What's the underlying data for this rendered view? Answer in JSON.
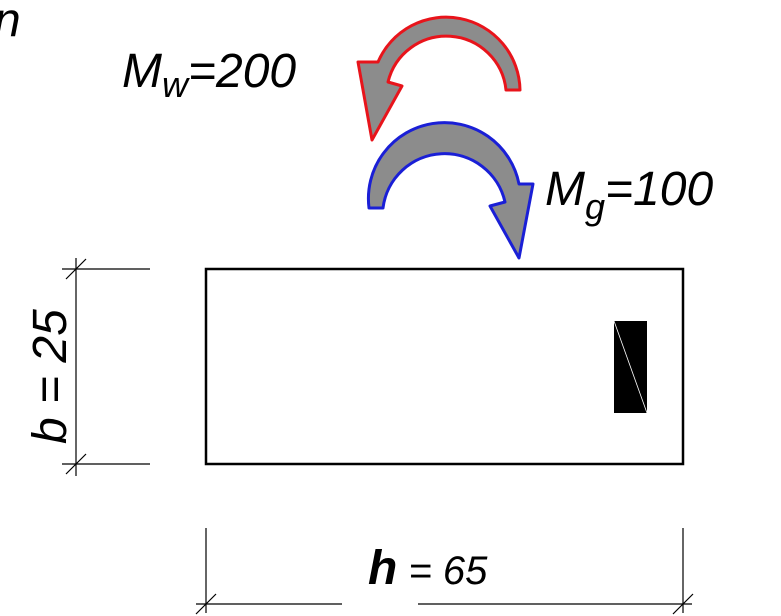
{
  "corner_fragment": "n",
  "moments": {
    "wind": {
      "symbol": "M",
      "subscript": "w",
      "value": "=200",
      "outline_color": "#e8141b"
    },
    "gravity": {
      "symbol": "M",
      "subscript": "g",
      "value": "=100",
      "outline_color": "#1a1fd6"
    },
    "arrow_fill": "#8c8c8c"
  },
  "dimensions": {
    "width": {
      "symbol": "b",
      "rest": " = 25"
    },
    "height": {
      "symbol": "h",
      "rest": " = 65"
    }
  },
  "section": {
    "reinforcement_color": "#000000"
  }
}
